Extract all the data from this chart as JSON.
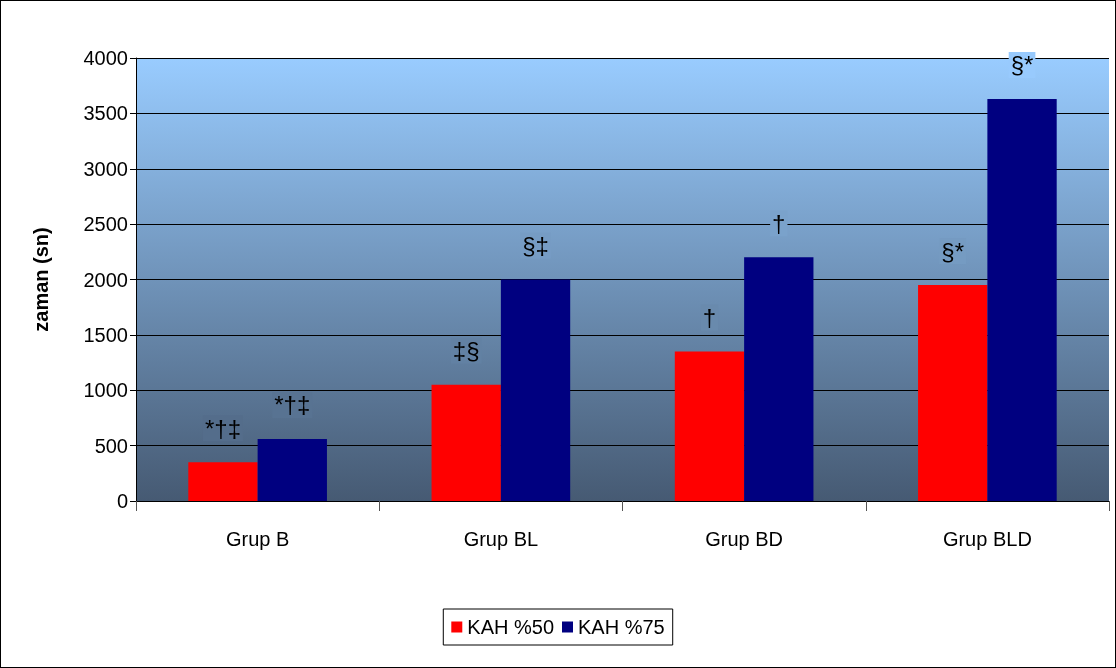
{
  "chart_data": {
    "type": "bar",
    "ylabel": "zaman (sn)",
    "categories": [
      "Grup B",
      "Grup BL",
      "Grup BD",
      "Grup BLD"
    ],
    "series": [
      {
        "name": "KAH %50",
        "color": "#ff0000",
        "values": [
          350,
          1050,
          1350,
          1950
        ]
      },
      {
        "name": "KAH %75",
        "color": "#000080",
        "values": [
          560,
          2000,
          2200,
          3630
        ]
      }
    ],
    "ylim": [
      0,
      4000
    ],
    "yticks": [
      0,
      500,
      1000,
      1500,
      2000,
      2500,
      3000,
      3500,
      4000
    ],
    "grid": "y",
    "legend": "bottom",
    "annotations": [
      {
        "text": "*†‡",
        "x": "Grup B",
        "y": 350
      },
      {
        "text": "*†‡",
        "x": "Grup B",
        "y": 560
      },
      {
        "text": "‡§",
        "x": "Grup BL",
        "y": 1050
      },
      {
        "text": "§‡",
        "x": "Grup BL",
        "y": 2000
      },
      {
        "text": "†",
        "x": "Grup BD",
        "y": 1350
      },
      {
        "text": "†",
        "x": "Grup BD",
        "y": 2200
      },
      {
        "text": "§*",
        "x": "Grup BLD",
        "y": 1950
      },
      {
        "text": "§*",
        "x": "Grup BLD",
        "y": 3630
      }
    ]
  }
}
